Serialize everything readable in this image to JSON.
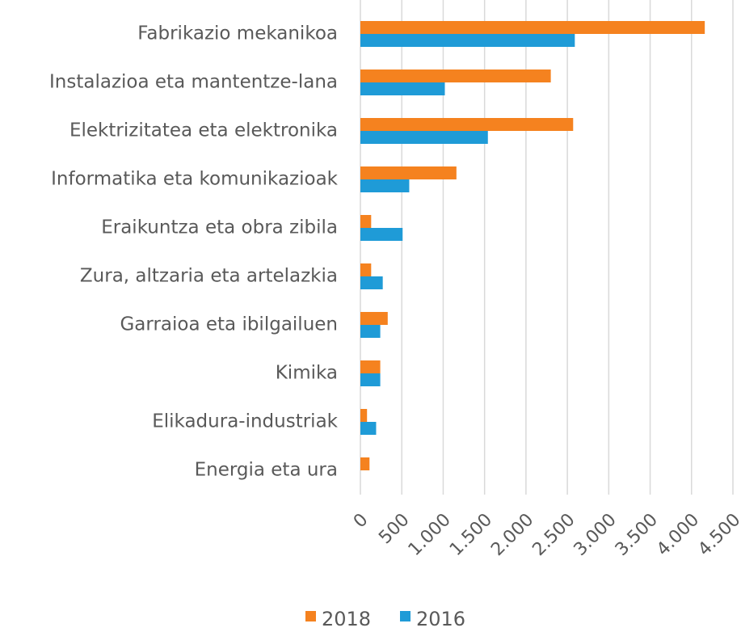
{
  "chart_data": {
    "type": "barh",
    "categories": [
      "Fabrikazio mekanikoa",
      "Instalazioa eta mantentze-lana",
      "Elektrizitatea eta elektronika",
      "Informatika eta komunikazioak",
      "Eraikuntza eta obra zibila",
      "Zura, altzaria eta artelazkia",
      "Garraioa eta ibilgailuen",
      "Kimika",
      "Elikadura-industriak",
      "Energia eta ura"
    ],
    "series": [
      {
        "name": "2018",
        "color": "#f5821f",
        "values": [
          4160,
          2300,
          2570,
          1160,
          130,
          130,
          330,
          240,
          80,
          110
        ]
      },
      {
        "name": "2016",
        "color": "#1f9bd7",
        "values": [
          2590,
          1020,
          1540,
          590,
          510,
          270,
          240,
          240,
          190,
          0
        ]
      }
    ],
    "xlim": [
      0,
      4500
    ],
    "xticks": [
      0,
      500,
      {
        "value": 1000,
        "label": "1.000"
      },
      {
        "value": 1500,
        "label": "1.500"
      },
      {
        "value": 2000,
        "label": "2.000"
      },
      {
        "value": 2500,
        "label": "2.500"
      },
      {
        "value": 3000,
        "label": "3.000"
      },
      {
        "value": 3500,
        "label": "3.500"
      },
      {
        "value": 4000,
        "label": "4.000"
      },
      {
        "value": 4500,
        "label": "4.500"
      }
    ],
    "grid": true,
    "legend": "bottom"
  }
}
